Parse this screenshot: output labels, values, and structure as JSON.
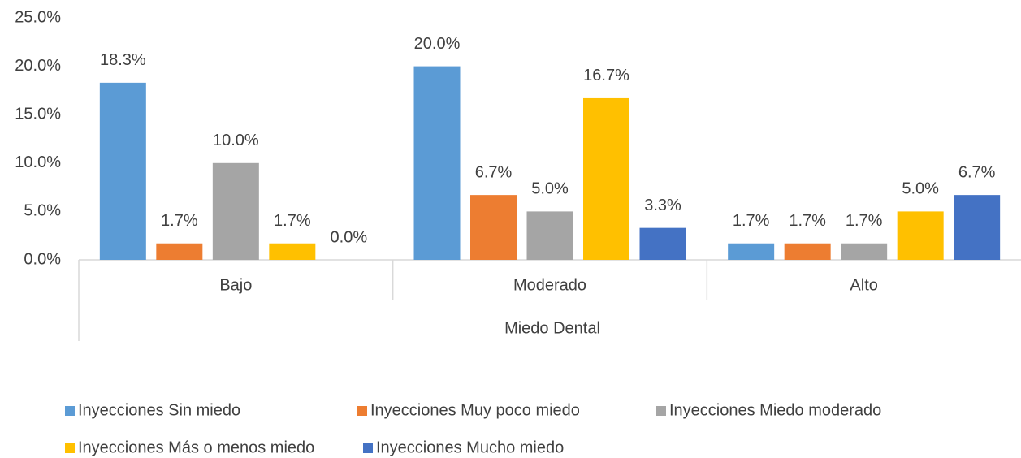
{
  "chart_data": {
    "type": "bar",
    "categories": [
      "Bajo",
      "Moderado",
      "Alto"
    ],
    "x_label": "Miedo Dental",
    "series": [
      {
        "name": "Inyecciones Sin miedo",
        "color": "#5b9bd5",
        "values": [
          18.3,
          20.0,
          1.7
        ],
        "value_labels": [
          "18.3%",
          "20.0%",
          "1.7%"
        ]
      },
      {
        "name": "Inyecciones Muy poco miedo",
        "color": "#ed7d31",
        "values": [
          1.7,
          6.7,
          1.7
        ],
        "value_labels": [
          "1.7%",
          "6.7%",
          "1.7%"
        ]
      },
      {
        "name": "Inyecciones Miedo moderado",
        "color": "#a5a5a5",
        "values": [
          10.0,
          5.0,
          1.7
        ],
        "value_labels": [
          "10.0%",
          "5.0%",
          "1.7%"
        ]
      },
      {
        "name": "Inyecciones Más o menos miedo",
        "color": "#ffc000",
        "values": [
          1.7,
          16.7,
          5.0
        ],
        "value_labels": [
          "1.7%",
          "16.7%",
          "5.0%"
        ]
      },
      {
        "name": "Inyecciones Mucho miedo",
        "color": "#4472c4",
        "values": [
          0.0,
          3.3,
          6.7
        ],
        "value_labels": [
          "0.0%",
          "3.3%",
          "6.7%"
        ]
      }
    ],
    "ylim": [
      0,
      25
    ],
    "yticks": [
      {
        "value": 0,
        "label": "0.0%"
      },
      {
        "value": 5,
        "label": "5.0%"
      },
      {
        "value": 10,
        "label": "10.0%"
      },
      {
        "value": 15,
        "label": "15.0%"
      },
      {
        "value": 20,
        "label": "20.0%"
      },
      {
        "value": 25,
        "label": "25.0%"
      }
    ],
    "grid": false,
    "legend": "bottom"
  }
}
